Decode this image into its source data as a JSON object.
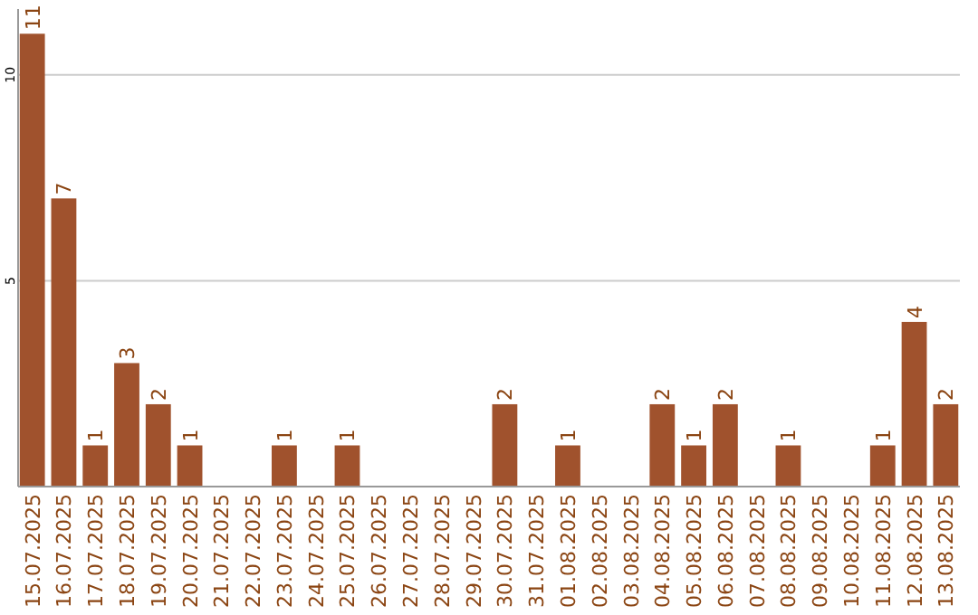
{
  "chart_data": {
    "type": "bar",
    "categories": [
      "15.07.2025",
      "16.07.2025",
      "17.07.2025",
      "18.07.2025",
      "19.07.2025",
      "20.07.2025",
      "21.07.2025",
      "22.07.2025",
      "23.07.2025",
      "24.07.2025",
      "25.07.2025",
      "26.07.2025",
      "27.07.2025",
      "28.07.2025",
      "29.07.2025",
      "30.07.2025",
      "31.07.2025",
      "01.08.2025",
      "02.08.2025",
      "03.08.2025",
      "04.08.2025",
      "05.08.2025",
      "06.08.2025",
      "07.08.2025",
      "08.08.2025",
      "09.08.2025",
      "10.08.2025",
      "11.08.2025",
      "12.08.2025",
      "13.08.2025"
    ],
    "values": [
      11,
      7,
      1,
      3,
      2,
      1,
      0,
      0,
      1,
      0,
      1,
      0,
      0,
      0,
      0,
      2,
      0,
      1,
      0,
      0,
      2,
      1,
      2,
      0,
      1,
      0,
      0,
      1,
      4,
      2
    ],
    "value_labels": [
      "11",
      "7",
      "1",
      "3",
      "2",
      "1",
      null,
      null,
      "1",
      null,
      "1",
      null,
      null,
      null,
      null,
      "2",
      null,
      "1",
      null,
      null,
      "2",
      "1",
      "2",
      null,
      "1",
      null,
      null,
      "1",
      "4",
      "2"
    ],
    "color": "#a0522d",
    "ylim": [
      0,
      11.6
    ],
    "yticks": [
      {
        "value": 0,
        "label": null
      },
      5,
      10
    ],
    "grid": "y"
  }
}
